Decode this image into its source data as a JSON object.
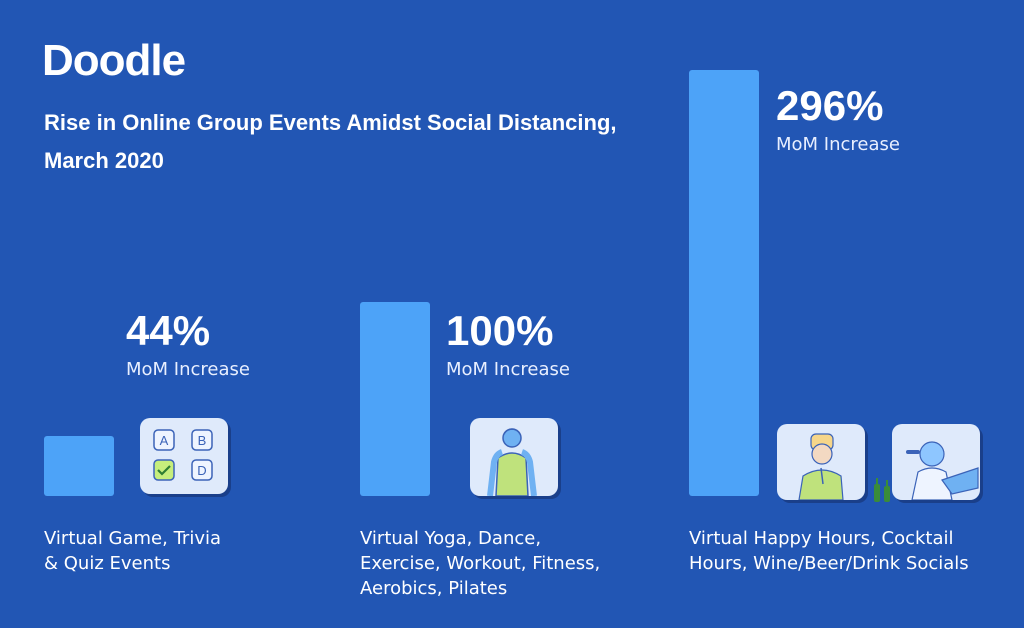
{
  "brand": {
    "logo_text": "Doodle",
    "title_lines": [
      "Rise in Online Group Events Amidst Social Distancing,",
      "March 2020"
    ]
  },
  "colors": {
    "background": "#2256b4",
    "bar": "#4da3f8",
    "tile": "#dfeafb"
  },
  "chart_data": {
    "type": "bar",
    "title": "Rise in Online Group Events Amidst Social Distancing, March 2020",
    "categories": [
      "Virtual Game, Trivia & Quiz Events",
      "Virtual Yoga, Dance, Exercise, Workout, Fitness, Aerobics, Pilates",
      "Virtual Happy Hours, Cocktail Hours, Wine/Beer/Drink Socials"
    ],
    "values": [
      44,
      100,
      296
    ],
    "unit": "% MoM Increase",
    "ylim": [
      0,
      300
    ],
    "xlabel": "",
    "ylabel": "",
    "grid": false,
    "value_labels": [
      "44%",
      "100%",
      "296%"
    ],
    "value_sublabel": "MoM Increase"
  },
  "categories_display": [
    {
      "lines": [
        "Virtual Game, Trivia",
        "& Quiz Events"
      ],
      "icon": "quiz-abcd-icon"
    },
    {
      "lines": [
        "Virtual Yoga, Dance,",
        "Exercise, Workout, Fitness,",
        "Aerobics, Pilates"
      ],
      "icon": "yoga-person-icon"
    },
    {
      "lines": [
        "Virtual Happy Hours, Cocktail",
        "Hours, Wine/Beer/Drink Socials"
      ],
      "icon": "happy-hour-icons"
    }
  ],
  "quiz_tile_letters": [
    "A",
    "B",
    "D"
  ]
}
